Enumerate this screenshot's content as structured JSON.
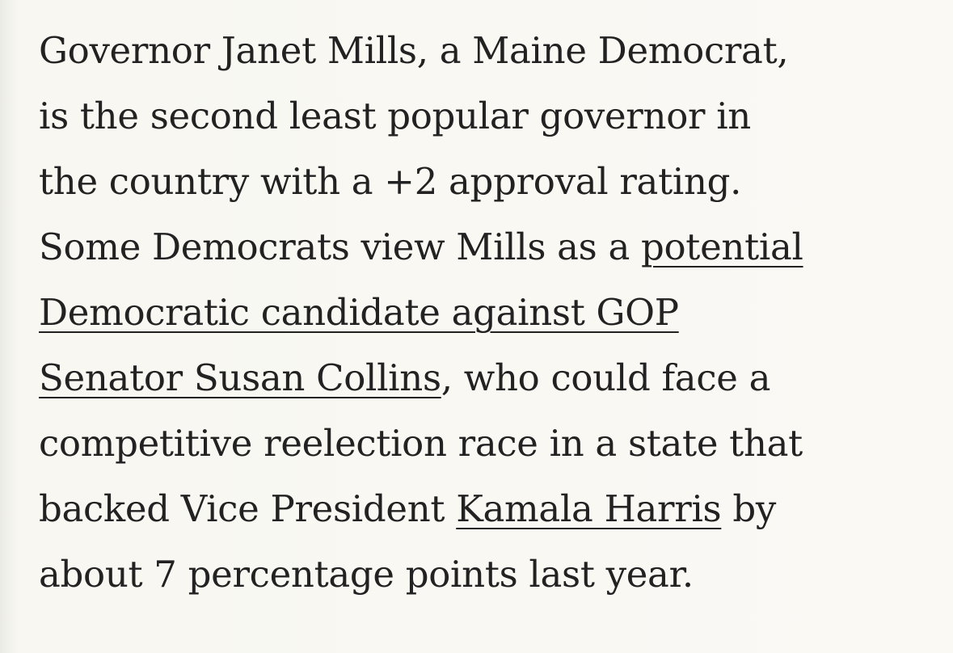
{
  "paragraph": {
    "lines": [
      [
        {
          "text": "Governor Janet Mills, a Maine Democrat,",
          "link": false
        }
      ],
      [
        {
          "text": "is the second least popular governor in",
          "link": false
        }
      ],
      [
        {
          "text": "the country with a +2 approval rating.",
          "link": false
        }
      ],
      [
        {
          "text": "Some Democrats view Mills as a ",
          "link": false
        },
        {
          "text": "potential",
          "link": true
        }
      ],
      [
        {
          "text": "Democratic candidate against GOP",
          "link": true
        }
      ],
      [
        {
          "text": "Senator Susan Collins",
          "link": true
        },
        {
          "text": ", who could face a",
          "link": false
        }
      ],
      [
        {
          "text": "competitive reelection race in a state that",
          "link": false
        }
      ],
      [
        {
          "text": "backed Vice President ",
          "link": false
        },
        {
          "text": "Kamala Harris",
          "link": true
        },
        {
          "text": " by",
          "link": false
        }
      ],
      [
        {
          "text": "about 7 percentage points last year.",
          "link": false
        }
      ]
    ]
  }
}
